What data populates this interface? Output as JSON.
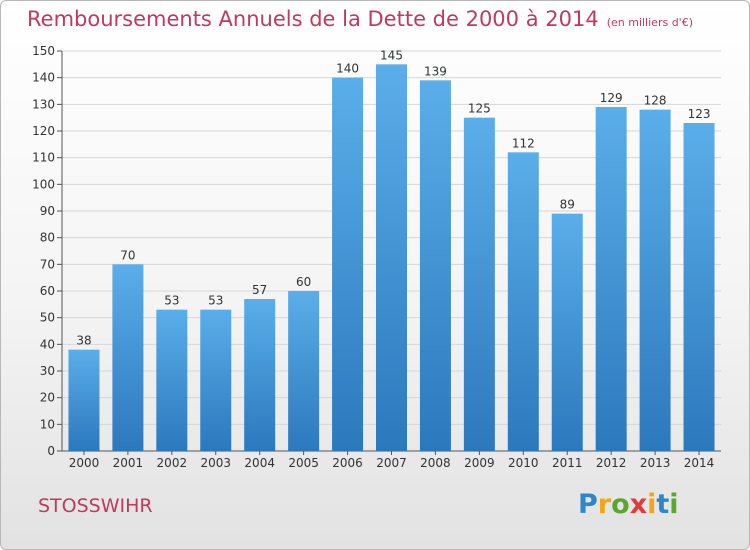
{
  "title": "Remboursements Annuels de la Dette de 2000 à 2014",
  "unit": "(en milliers d'€)",
  "place": "STOSSWIHR",
  "logo": {
    "letters": [
      "P",
      "r",
      "o",
      "x",
      "i",
      "t",
      "i"
    ],
    "colors": [
      "#2f86c8",
      "#f2a51b",
      "#5aa62e",
      "#e23a3a",
      "#f2a51b",
      "#2f86c8",
      "#5aa62e"
    ]
  },
  "colors": {
    "bar_top": "#5aaee9",
    "bar_bottom": "#2c78bd",
    "grid": "#d6d6d6",
    "title": "#c0395e"
  },
  "chart_data": {
    "type": "bar",
    "title": "Remboursements Annuels de la Dette de 2000 à 2014",
    "xlabel": "",
    "ylabel": "",
    "categories": [
      "2000",
      "2001",
      "2002",
      "2003",
      "2004",
      "2005",
      "2006",
      "2007",
      "2008",
      "2009",
      "2010",
      "2011",
      "2012",
      "2013",
      "2014"
    ],
    "values": [
      38,
      70,
      53,
      53,
      57,
      60,
      140,
      145,
      139,
      125,
      112,
      89,
      129,
      128,
      123
    ],
    "ylim": [
      0,
      150
    ],
    "yticks": [
      0,
      10,
      20,
      30,
      40,
      50,
      60,
      70,
      80,
      90,
      100,
      110,
      120,
      130,
      140,
      150
    ],
    "grid": true,
    "data_labels": true
  }
}
